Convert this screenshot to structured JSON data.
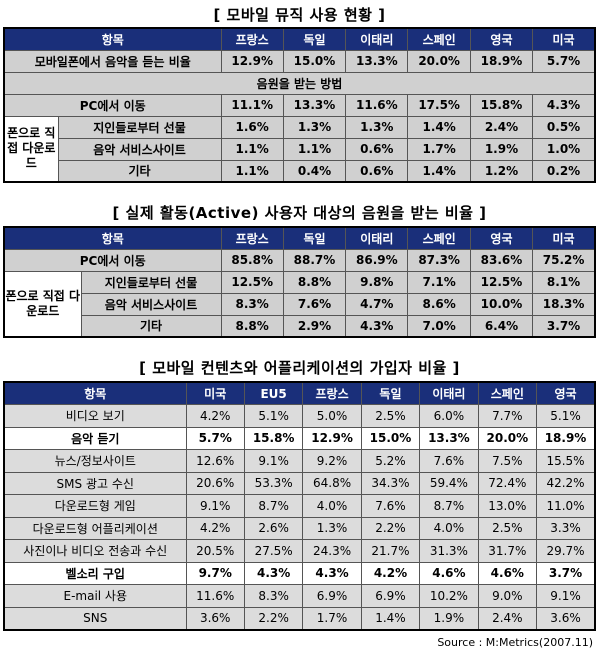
{
  "table1": {
    "title": "[ 모바일 뮤직 사용 현황 ]",
    "headers": [
      "항목",
      "프랑스",
      "독일",
      "이태리",
      "스페인",
      "영국",
      "미국"
    ],
    "row_phone": {
      "label": "모바일폰에서 음악을 듣는 비율",
      "values": [
        "12.9%",
        "15.0%",
        "13.3%",
        "20.0%",
        "18.9%",
        "5.7%"
      ]
    },
    "subheader": "음원을 받는 방법",
    "row_pc": {
      "label": "PC에서 이동",
      "values": [
        "11.1%",
        "13.3%",
        "11.6%",
        "17.5%",
        "15.8%",
        "4.3%"
      ]
    },
    "group_label": "폰으로 직접 다운로드",
    "group_rows": [
      {
        "label": "지인들로부터 선물",
        "values": [
          "1.6%",
          "1.3%",
          "1.3%",
          "1.4%",
          "2.4%",
          "0.5%"
        ]
      },
      {
        "label": "음악 서비스사이트",
        "values": [
          "1.1%",
          "1.1%",
          "0.6%",
          "1.7%",
          "1.9%",
          "1.0%"
        ]
      },
      {
        "label": "기타",
        "values": [
          "1.1%",
          "0.4%",
          "0.6%",
          "1.4%",
          "1.2%",
          "0.2%"
        ]
      }
    ]
  },
  "table2": {
    "title": "[ 실제 활동(Active) 사용자 대상의 음원을 받는 비율 ]",
    "headers": [
      "항목",
      "프랑스",
      "독일",
      "이태리",
      "스페인",
      "영국",
      "미국"
    ],
    "row_pc": {
      "label": "PC에서 이동",
      "values": [
        "85.8%",
        "88.7%",
        "86.9%",
        "87.3%",
        "83.6%",
        "75.2%"
      ]
    },
    "group_label": "폰으로 직접 다운로드",
    "group_rows": [
      {
        "label": "지인들로부터 선물",
        "values": [
          "12.5%",
          "8.8%",
          "9.8%",
          "7.1%",
          "12.5%",
          "8.1%"
        ]
      },
      {
        "label": "음악 서비스사이트",
        "values": [
          "8.3%",
          "7.6%",
          "4.7%",
          "8.6%",
          "10.0%",
          "18.3%"
        ]
      },
      {
        "label": "기타",
        "values": [
          "8.8%",
          "2.9%",
          "4.3%",
          "7.0%",
          "6.4%",
          "3.7%"
        ]
      }
    ]
  },
  "table3": {
    "title": "[ 모바일 컨텐츠와 어플리케이션의 가입자 비율 ]",
    "headers": [
      "항목",
      "미국",
      "EU5",
      "프랑스",
      "독일",
      "이태리",
      "스페인",
      "영국"
    ],
    "rows": [
      {
        "label": "비디오 보기",
        "values": [
          "4.2%",
          "5.1%",
          "5.0%",
          "2.5%",
          "6.0%",
          "7.7%",
          "5.1%"
        ],
        "bold": false
      },
      {
        "label": "음악 듣기",
        "values": [
          "5.7%",
          "15.8%",
          "12.9%",
          "15.0%",
          "13.3%",
          "20.0%",
          "18.9%"
        ],
        "bold": true
      },
      {
        "label": "뉴스/정보사이트",
        "values": [
          "12.6%",
          "9.1%",
          "9.2%",
          "5.2%",
          "7.6%",
          "7.5%",
          "15.5%"
        ],
        "bold": false
      },
      {
        "label": "SMS 광고 수신",
        "values": [
          "20.6%",
          "53.3%",
          "64.8%",
          "34.3%",
          "59.4%",
          "72.4%",
          "42.2%"
        ],
        "bold": false
      },
      {
        "label": "다운로드형 게임",
        "values": [
          "9.1%",
          "8.7%",
          "4.0%",
          "7.6%",
          "8.7%",
          "13.0%",
          "11.0%"
        ],
        "bold": false
      },
      {
        "label": "다운로드형 어플리케이션",
        "values": [
          "4.2%",
          "2.6%",
          "1.3%",
          "2.2%",
          "4.0%",
          "2.5%",
          "3.3%"
        ],
        "bold": false
      },
      {
        "label": "사진이나 비디오 전송과 수신",
        "values": [
          "20.5%",
          "27.5%",
          "24.3%",
          "21.7%",
          "31.3%",
          "31.7%",
          "29.7%"
        ],
        "bold": false
      },
      {
        "label": "벨소리 구입",
        "values": [
          "9.7%",
          "4.3%",
          "4.3%",
          "4.2%",
          "4.6%",
          "4.6%",
          "3.7%"
        ],
        "bold": true
      },
      {
        "label": "E-mail 사용",
        "values": [
          "11.6%",
          "8.3%",
          "6.9%",
          "6.9%",
          "10.2%",
          "9.0%",
          "9.1%"
        ],
        "bold": false
      },
      {
        "label": "SNS",
        "values": [
          "3.6%",
          "2.2%",
          "1.7%",
          "1.4%",
          "1.9%",
          "2.4%",
          "3.6%"
        ],
        "bold": false
      }
    ]
  },
  "source": "Source : M:Metrics(2007.11)",
  "colors": {
    "header_bg": "#1a2f7a",
    "header_text": "#ffffff",
    "gray_row": "#d0d0d0"
  }
}
